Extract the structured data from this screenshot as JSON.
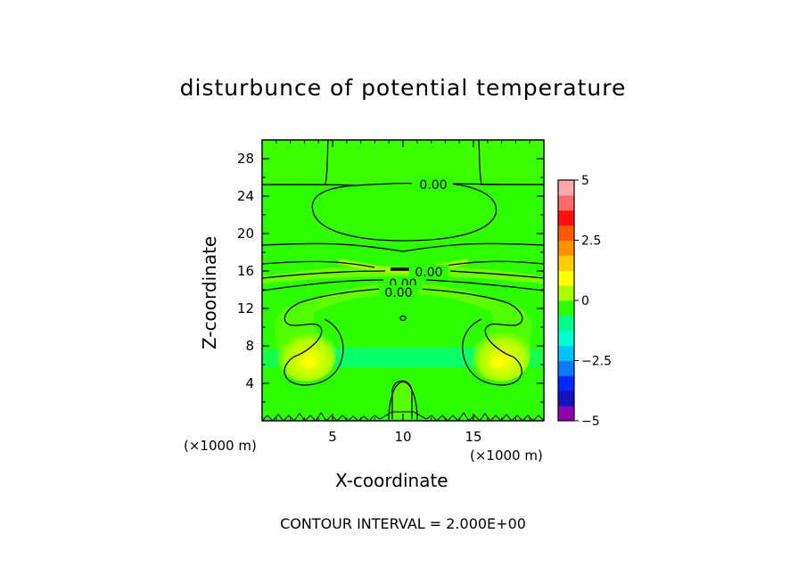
{
  "chart_data": {
    "type": "heatmap",
    "title": "disturbunce of potential temperature",
    "xlabel": "X-coordinate",
    "ylabel": "Z-coordinate",
    "x_unit": "(×1000 m)",
    "y_unit": "(×1000 m)",
    "xlim": [
      0,
      20
    ],
    "ylim": [
      0,
      30
    ],
    "x_ticks": [
      5,
      10,
      15
    ],
    "y_ticks": [
      4,
      8,
      12,
      16,
      20,
      24,
      28
    ],
    "colorbar": {
      "range": [
        -5,
        5
      ],
      "labels": [
        "5",
        "2.5",
        "0",
        "−2.5",
        "−5"
      ],
      "label_values": [
        5,
        2.5,
        0,
        -2.5,
        -5
      ],
      "colors": [
        "#8f00ad",
        "#1414be",
        "#0028ff",
        "#0a78ff",
        "#00c3ff",
        "#00ffd2",
        "#00ff8c",
        "#2dff00",
        "#a8ff00",
        "#ffff00",
        "#ffcc00",
        "#ff9400",
        "#ff5a00",
        "#ff0f0f",
        "#ff6b6b",
        "#ffaaaa"
      ]
    },
    "contour_labels": [
      "0.00",
      "0.00",
      "0.00",
      "0.00"
    ],
    "note": "CONTOUR INTERVAL = 2.000E+00"
  }
}
